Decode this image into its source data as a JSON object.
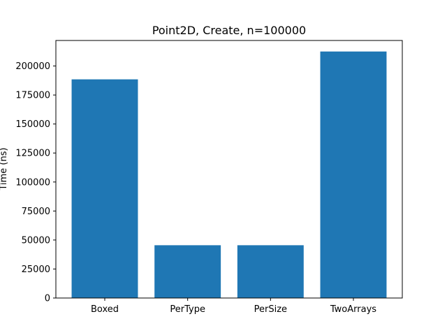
{
  "chart_data": {
    "type": "bar",
    "title": "Point2D, Create, n=100000",
    "xlabel": "",
    "ylabel": "Time (ns)",
    "categories": [
      "Boxed",
      "PerType",
      "PerSize",
      "TwoArrays"
    ],
    "values": [
      188500,
      45500,
      45500,
      212500
    ],
    "ylim": [
      0,
      222000
    ],
    "yticks": [
      0,
      25000,
      50000,
      75000,
      100000,
      125000,
      150000,
      175000,
      200000
    ],
    "grid": false,
    "legend": "none",
    "bar_color": "#1f77b4"
  }
}
